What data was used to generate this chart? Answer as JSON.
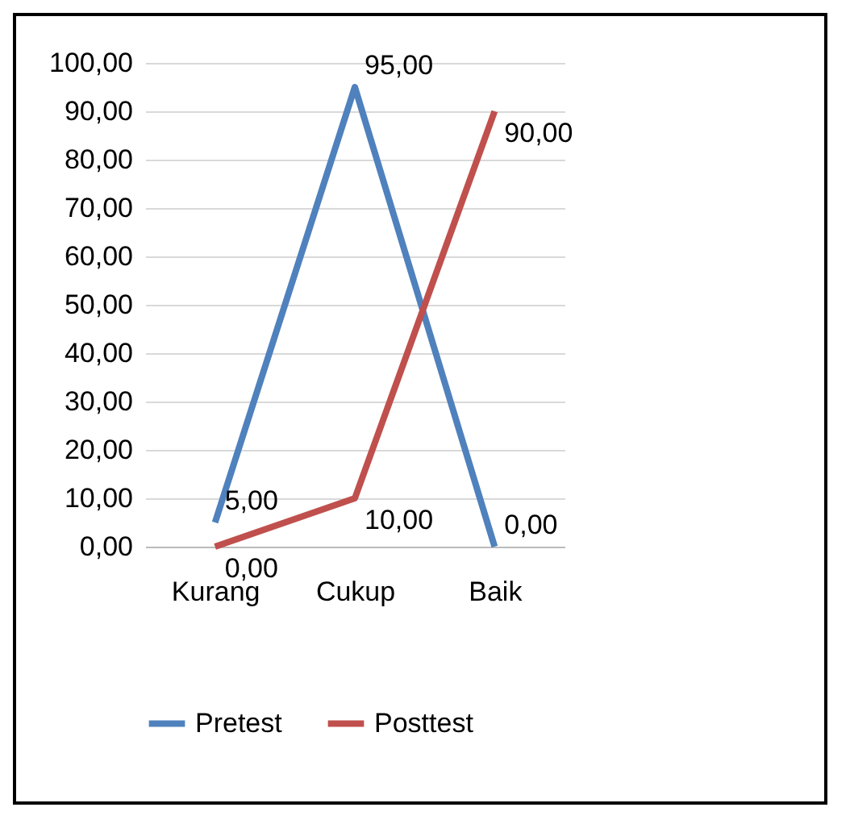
{
  "chart_data": {
    "type": "line",
    "categories": [
      "Kurang",
      "Cukup",
      "Baik"
    ],
    "series": [
      {
        "name": "Pretest",
        "color": "#4f81bd",
        "values": [
          5,
          95,
          0
        ],
        "value_labels": [
          "5,00",
          "95,00",
          "0,00"
        ]
      },
      {
        "name": "Posttest",
        "color": "#c0504d",
        "values": [
          0,
          10,
          90
        ],
        "value_labels": [
          "0,00",
          "10,00",
          "90,00"
        ]
      }
    ],
    "ylim": [
      0,
      100
    ],
    "yticks": [
      {
        "value": 0,
        "label": "0,00"
      },
      {
        "value": 10,
        "label": "10,00"
      },
      {
        "value": 20,
        "label": "20,00"
      },
      {
        "value": 30,
        "label": "30,00"
      },
      {
        "value": 40,
        "label": "40,00"
      },
      {
        "value": 50,
        "label": "50,00"
      },
      {
        "value": 60,
        "label": "60,00"
      },
      {
        "value": 70,
        "label": "70,00"
      },
      {
        "value": 80,
        "label": "80,00"
      },
      {
        "value": 90,
        "label": "90,00"
      },
      {
        "value": 100,
        "label": "100,00"
      }
    ],
    "grid": "y",
    "legend": "bottom",
    "line_style": "solid",
    "marker": "none"
  }
}
